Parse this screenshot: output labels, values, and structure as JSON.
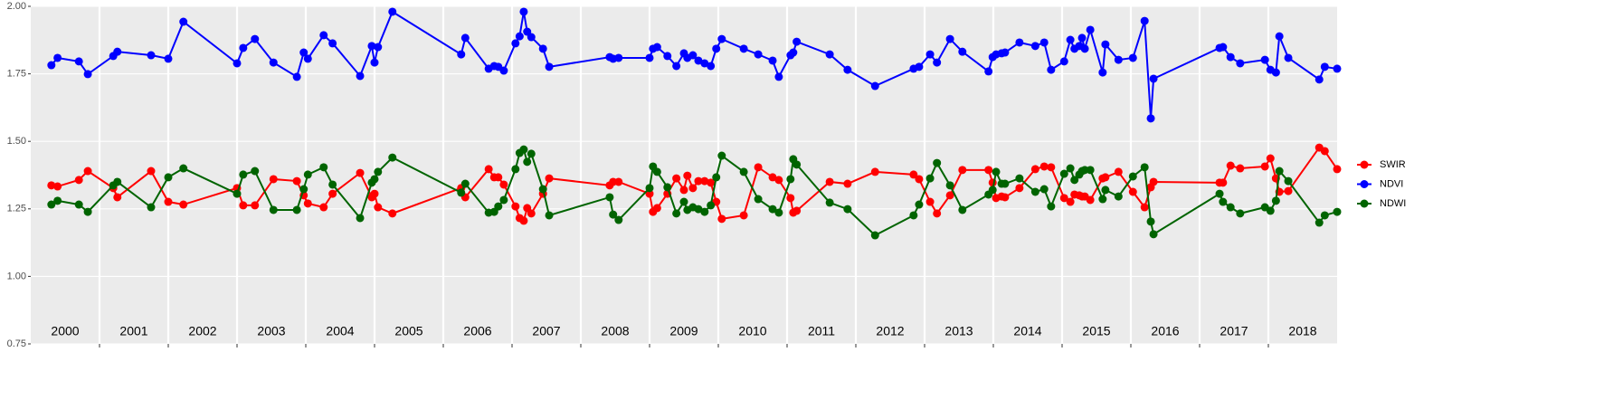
{
  "chart_data": {
    "type": "line",
    "xlim": [
      2000,
      2019
    ],
    "ylim": [
      0.75,
      2.0
    ],
    "yticks": [
      {
        "value": 0.75,
        "label": "0.75"
      },
      {
        "value": 1.0,
        "label": "1.00"
      },
      {
        "value": 1.25,
        "label": "1.25"
      },
      {
        "value": 1.5,
        "label": "1.50"
      },
      {
        "value": 1.75,
        "label": "1.75"
      },
      {
        "value": 2.0,
        "label": "2.00"
      }
    ],
    "x_breaks": [
      2001,
      2002,
      2003,
      2004,
      2005,
      2006,
      2007,
      2008,
      2009,
      2010,
      2011,
      2012,
      2013,
      2014,
      2015,
      2016,
      2017,
      2018
    ],
    "year_labels": [
      "2000",
      "2001",
      "2002",
      "2003",
      "2004",
      "2005",
      "2006",
      "2007",
      "2008",
      "2009",
      "2010",
      "2011",
      "2012",
      "2013",
      "2014",
      "2015",
      "2016",
      "2017",
      "2018"
    ],
    "grid": true,
    "legend": "right",
    "x": [
      2000.3,
      2000.39,
      2000.7,
      2000.83,
      2001.2,
      2001.26,
      2001.75,
      2002.0,
      2002.22,
      2003.0,
      2003.09,
      2003.26,
      2003.53,
      2003.87,
      2003.97,
      2004.03,
      2004.26,
      2004.39,
      2004.79,
      2004.96,
      2005.0,
      2005.05,
      2005.26,
      2006.26,
      2006.32,
      2006.66,
      2006.74,
      2006.8,
      2006.88,
      2007.05,
      2007.11,
      2007.17,
      2007.22,
      2007.28,
      2007.45,
      2007.54,
      2008.42,
      2008.47,
      2008.55,
      2009.0,
      2009.05,
      2009.11,
      2009.26,
      2009.39,
      2009.5,
      2009.55,
      2009.63,
      2009.71,
      2009.8,
      2009.89,
      2009.97,
      2010.05,
      2010.37,
      2010.58,
      2010.79,
      2010.88,
      2011.05,
      2011.09,
      2011.14,
      2011.62,
      2011.88,
      2012.28,
      2012.84,
      2012.92,
      2013.08,
      2013.18,
      2013.37,
      2013.55,
      2013.93,
      2013.99,
      2014.04,
      2014.12,
      2014.17,
      2014.38,
      2014.61,
      2014.74,
      2014.84,
      2015.03,
      2015.12,
      2015.18,
      2015.25,
      2015.29,
      2015.33,
      2015.41,
      2015.59,
      2015.63,
      2015.82,
      2016.03,
      2016.2,
      2016.29,
      2016.33,
      2017.29,
      2017.34,
      2017.45,
      2017.59,
      2017.95,
      2018.03,
      2018.11,
      2018.16,
      2018.29,
      2018.74,
      2018.82,
      2019.0
    ],
    "series": [
      {
        "name": "SWIR",
        "color": "#ff0000",
        "values": [
          1.337,
          1.333,
          1.357,
          1.39,
          1.327,
          1.293,
          1.39,
          1.276,
          1.266,
          1.327,
          1.263,
          1.263,
          1.36,
          1.353,
          1.3,
          1.27,
          1.256,
          1.306,
          1.383,
          1.293,
          1.306,
          1.256,
          1.233,
          1.327,
          1.293,
          1.397,
          1.367,
          1.367,
          1.34,
          1.259,
          1.216,
          1.206,
          1.253,
          1.233,
          1.306,
          1.363,
          1.337,
          1.35,
          1.35,
          1.306,
          1.239,
          1.253,
          1.306,
          1.363,
          1.32,
          1.373,
          1.327,
          1.353,
          1.353,
          1.347,
          1.276,
          1.213,
          1.226,
          1.404,
          1.367,
          1.357,
          1.29,
          1.236,
          1.243,
          1.35,
          1.343,
          1.387,
          1.377,
          1.36,
          1.276,
          1.233,
          1.3,
          1.394,
          1.394,
          1.347,
          1.29,
          1.296,
          1.293,
          1.327,
          1.397,
          1.407,
          1.404,
          1.29,
          1.276,
          1.303,
          1.3,
          1.296,
          1.296,
          1.283,
          1.363,
          1.367,
          1.387,
          1.313,
          1.256,
          1.33,
          1.35,
          1.347,
          1.347,
          1.41,
          1.4,
          1.407,
          1.437,
          1.363,
          1.313,
          1.316,
          1.477,
          1.464,
          1.397
        ]
      },
      {
        "name": "NDVI",
        "color": "#0000ff",
        "values": [
          1.782,
          1.809,
          1.796,
          1.749,
          1.816,
          1.832,
          1.819,
          1.806,
          1.943,
          1.789,
          1.846,
          1.879,
          1.792,
          1.739,
          1.829,
          1.806,
          1.893,
          1.863,
          1.742,
          1.853,
          1.792,
          1.849,
          1.98,
          1.822,
          1.883,
          1.769,
          1.779,
          1.776,
          1.762,
          1.863,
          1.889,
          1.98,
          1.906,
          1.886,
          1.843,
          1.776,
          1.812,
          1.806,
          1.809,
          1.809,
          1.843,
          1.849,
          1.816,
          1.779,
          1.826,
          1.809,
          1.819,
          1.799,
          1.789,
          1.779,
          1.843,
          1.879,
          1.843,
          1.822,
          1.799,
          1.739,
          1.819,
          1.829,
          1.869,
          1.822,
          1.765,
          1.705,
          1.769,
          1.776,
          1.822,
          1.792,
          1.879,
          1.832,
          1.759,
          1.812,
          1.822,
          1.826,
          1.829,
          1.866,
          1.853,
          1.866,
          1.765,
          1.796,
          1.876,
          1.843,
          1.853,
          1.883,
          1.843,
          1.913,
          1.755,
          1.859,
          1.802,
          1.809,
          1.946,
          1.585,
          1.732,
          1.846,
          1.849,
          1.812,
          1.789,
          1.802,
          1.765,
          1.755,
          1.889,
          1.809,
          1.729,
          1.776,
          1.769
        ]
      },
      {
        "name": "NDWI",
        "color": "#006400",
        "values": [
          1.266,
          1.28,
          1.266,
          1.239,
          1.337,
          1.35,
          1.256,
          1.367,
          1.4,
          1.306,
          1.377,
          1.39,
          1.246,
          1.246,
          1.323,
          1.377,
          1.404,
          1.34,
          1.216,
          1.347,
          1.36,
          1.387,
          1.44,
          1.31,
          1.343,
          1.236,
          1.239,
          1.259,
          1.283,
          1.397,
          1.457,
          1.47,
          1.424,
          1.454,
          1.323,
          1.226,
          1.293,
          1.229,
          1.209,
          1.327,
          1.407,
          1.387,
          1.33,
          1.233,
          1.276,
          1.246,
          1.256,
          1.249,
          1.239,
          1.263,
          1.367,
          1.447,
          1.387,
          1.286,
          1.249,
          1.236,
          1.36,
          1.434,
          1.414,
          1.273,
          1.249,
          1.152,
          1.226,
          1.266,
          1.363,
          1.42,
          1.337,
          1.246,
          1.303,
          1.32,
          1.387,
          1.343,
          1.343,
          1.363,
          1.313,
          1.323,
          1.259,
          1.38,
          1.4,
          1.357,
          1.377,
          1.39,
          1.394,
          1.394,
          1.286,
          1.32,
          1.296,
          1.37,
          1.404,
          1.203,
          1.156,
          1.306,
          1.276,
          1.256,
          1.233,
          1.256,
          1.243,
          1.28,
          1.39,
          1.353,
          1.199,
          1.226,
          1.239
        ]
      }
    ]
  }
}
